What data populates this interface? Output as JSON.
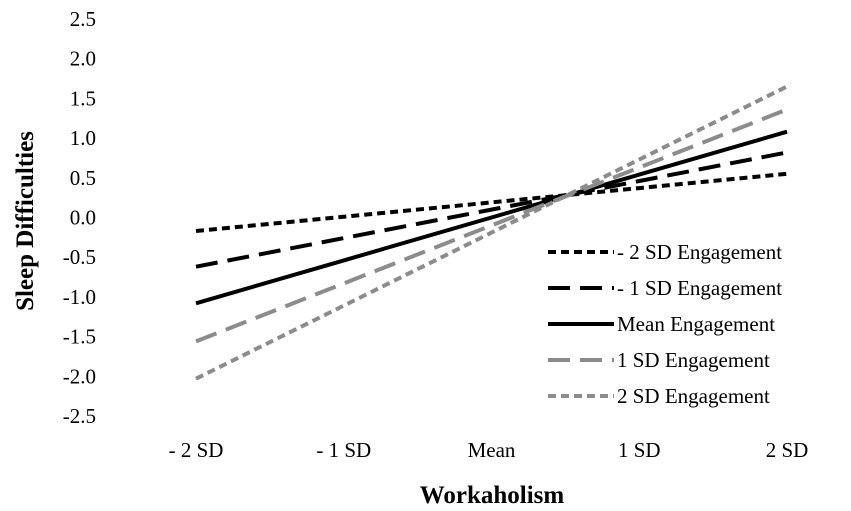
{
  "chart_data": {
    "type": "line",
    "title": "",
    "xlabel": "Workaholism",
    "ylabel": "Sleep Difficulties",
    "categories": [
      "- 2 SD",
      "- 1 SD",
      "Mean",
      "1 SD",
      "2 SD"
    ],
    "yticks": [
      "2.5",
      "2.0",
      "1.5",
      "1.0",
      "0.5",
      "0.0",
      "-0.5",
      "-1.0",
      "-1.5",
      "-2.0",
      "-2.5"
    ],
    "ylim": [
      -2.5,
      2.5
    ],
    "grid": false,
    "legend_position": "right",
    "series": [
      {
        "name": "- 2 SD Engagement",
        "color": "#000000",
        "dash": "short",
        "values": [
          -0.17,
          0.01,
          0.19,
          0.37,
          0.55
        ]
      },
      {
        "name": "- 1 SD Engagement",
        "color": "#000000",
        "dash": "long",
        "values": [
          -0.62,
          -0.26,
          0.1,
          0.46,
          0.82
        ]
      },
      {
        "name": "Mean Engagement",
        "color": "#000000",
        "dash": "solid",
        "values": [
          -1.08,
          -0.54,
          0.0,
          0.54,
          1.08
        ]
      },
      {
        "name": "1 SD Engagement",
        "color": "#8c8c8c",
        "dash": "long",
        "values": [
          -1.56,
          -0.83,
          -0.1,
          0.63,
          1.36
        ]
      },
      {
        "name": "2 SD Engagement",
        "color": "#8c8c8c",
        "dash": "short",
        "values": [
          -2.03,
          -1.11,
          -0.19,
          0.73,
          1.65
        ]
      }
    ]
  }
}
